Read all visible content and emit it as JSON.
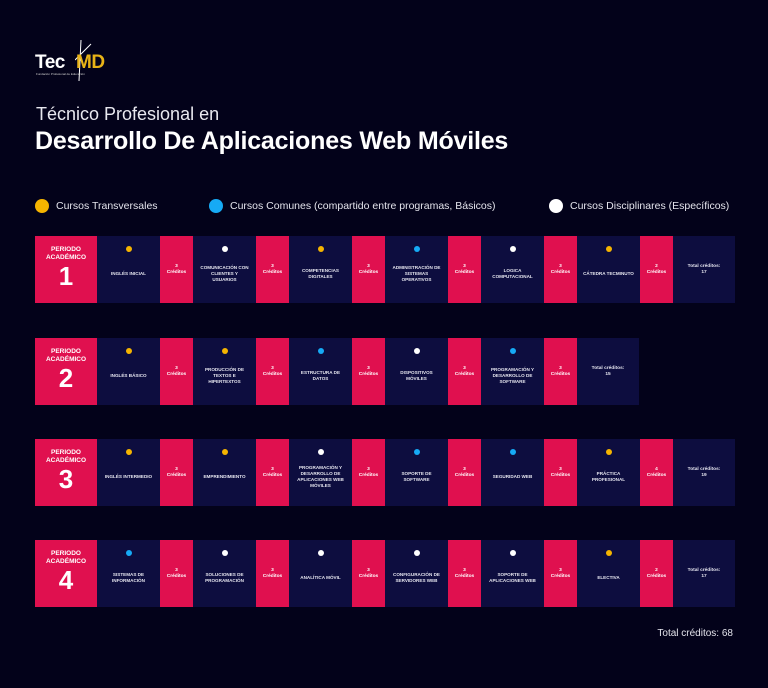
{
  "logo": {
    "tec": "Tec",
    "md": "MD",
    "tagline": "Fundación Profesional de Educación"
  },
  "header": {
    "subtitle": "Técnico Profesional en",
    "title": "Desarrollo De Aplicaciones Web Móviles"
  },
  "colors": {
    "transversal": "#f5b400",
    "comun": "#16aaf5",
    "disciplinar": "#ffffff",
    "period_bg": "#e0104f",
    "course_bg": "#0d0d3f",
    "page_bg": "#03021a"
  },
  "legend": [
    {
      "label": "Cursos Transversales",
      "type": "transversal"
    },
    {
      "label": "Cursos Comunes (compartido entre programas, Básicos)",
      "type": "comun"
    },
    {
      "label": "Cursos Disciplinares (Específicos)",
      "type": "disciplinar"
    }
  ],
  "credit_label": "Créditos",
  "period_label": "PERIODO ACADÉMICO",
  "periods": [
    {
      "number": "1",
      "courses": [
        {
          "name": "INGLÉS INICIAL",
          "type": "transversal",
          "credits": "3"
        },
        {
          "name": "COMUNICACIÓN CON CLIENTES Y USUARIOS",
          "type": "disciplinar",
          "credits": "3"
        },
        {
          "name": "COMPETENCIAS DIGITALES",
          "type": "transversal",
          "credits": "3"
        },
        {
          "name": "ADMINISTRACIÓN DE SISTEMAS OPERATIVOS",
          "type": "comun",
          "credits": "3"
        },
        {
          "name": "LOGICA COMPUTACIONAL",
          "type": "disciplinar",
          "credits": "3"
        },
        {
          "name": "CÁTEDRA TecMINUTO",
          "type": "transversal",
          "credits": "2"
        }
      ],
      "total_label": "Total créditos:",
      "total": "17"
    },
    {
      "number": "2",
      "courses": [
        {
          "name": "INGLÉS BÁSICO",
          "type": "transversal",
          "credits": "3"
        },
        {
          "name": "PRODUCCIÓN DE TEXTOS E HIPERTEXTOS",
          "type": "transversal",
          "credits": "3"
        },
        {
          "name": "ESTRUCTURA DE DATOS",
          "type": "comun",
          "credits": "3"
        },
        {
          "name": "DISPOSITIVOS MÓVILES",
          "type": "disciplinar",
          "credits": "3"
        },
        {
          "name": "PROGRAMACIÓN Y DESARROLLO DE SOFTWARE",
          "type": "comun",
          "credits": "3"
        }
      ],
      "total_label": "Total créditos:",
      "total": "15"
    },
    {
      "number": "3",
      "courses": [
        {
          "name": "INGLÉS INTERMEDIO",
          "type": "transversal",
          "credits": "3"
        },
        {
          "name": "EMPRENDIMIENTO",
          "type": "transversal",
          "credits": "3"
        },
        {
          "name": "PROGRAMACIÓN Y DESARROLLO DE APLICACIONES WEB MÓVILES",
          "type": "disciplinar",
          "credits": "3"
        },
        {
          "name": "SOPORTE DE SOFTWARE",
          "type": "comun",
          "credits": "3"
        },
        {
          "name": "SEGURIDAD WEB",
          "type": "comun",
          "credits": "3"
        },
        {
          "name": "PRÁCTICA PROFESIONAL",
          "type": "transversal",
          "credits": "4"
        }
      ],
      "total_label": "Total créditos:",
      "total": "19"
    },
    {
      "number": "4",
      "courses": [
        {
          "name": "SISTEMAS DE INFORMACIÓN",
          "type": "comun",
          "credits": "3"
        },
        {
          "name": "SOLUCIONES DE PROGRAMACIÓN",
          "type": "disciplinar",
          "credits": "3"
        },
        {
          "name": "ANALÍTICA MÓVIL",
          "type": "disciplinar",
          "credits": "3"
        },
        {
          "name": "CONFIGURACIÓN DE SERVIDORES WEB",
          "type": "disciplinar",
          "credits": "3"
        },
        {
          "name": "SOPORTE DE APLICACIONES WEB",
          "type": "disciplinar",
          "credits": "3"
        },
        {
          "name": "ELECTIVA",
          "type": "transversal",
          "credits": "2"
        }
      ],
      "total_label": "Total créditos:",
      "total": "17"
    }
  ],
  "footer": {
    "grand_total": "Total créditos: 68"
  }
}
